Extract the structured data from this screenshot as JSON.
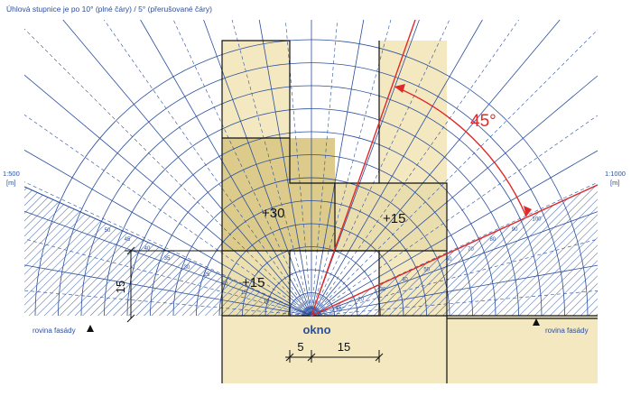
{
  "header": {
    "title": "Úhlová stupnice je po 10° (plné čáry) / 5° (přerušované čáry)"
  },
  "scales": {
    "left_scale": "1:500",
    "left_unit": "[m]",
    "right_scale": "1:1000",
    "right_unit": "[m]",
    "left_ticks": [
      "50",
      "45",
      "40",
      "35",
      "30",
      "25",
      "20",
      "15",
      "10"
    ],
    "right_ticks": [
      "10",
      "20",
      "30",
      "40",
      "50",
      "60",
      "70",
      "80",
      "90",
      "100"
    ],
    "right_ticks_small": [
      "5",
      "15"
    ]
  },
  "labels": {
    "facade_left": "rovina fasády",
    "facade_right": "rovina fasády",
    "window": "okno",
    "angle": "45°",
    "obstruction_left_top": "+30",
    "obstruction_right": "+15",
    "obstruction_left_bottom": "+15",
    "height_dim": "15",
    "dim_a": "5",
    "dim_b": "15"
  },
  "colors": {
    "blue": "#2a4f9e",
    "red": "#e0292a",
    "beige": "#f3e8bf",
    "beige_dark": "#d9c886",
    "hatch": "#3b5ea8"
  },
  "icons": {
    "facade_marker": "triangle-marker-icon"
  }
}
